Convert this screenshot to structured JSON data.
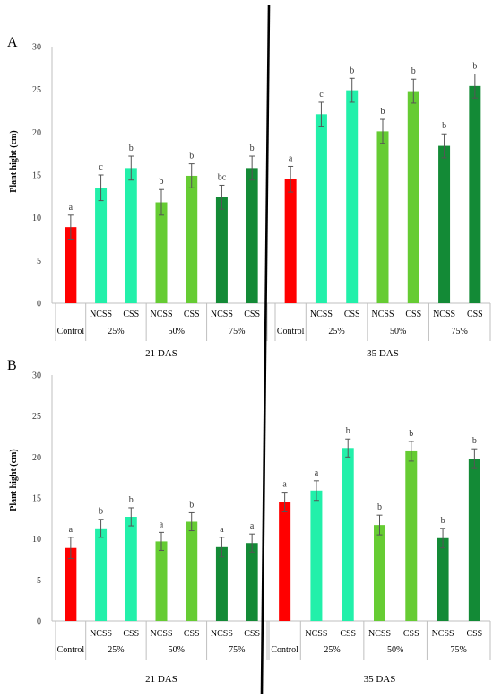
{
  "colors": {
    "control": "#FF0000",
    "light_green": "#22F0AA",
    "medium_green": "#66CC33",
    "dark_green": "#138A36"
  },
  "chart_data": [
    {
      "type": "bar",
      "panel": "A",
      "ylabel": "Plant hight (cm)",
      "ylim": [
        0,
        30
      ],
      "yticks": [
        0,
        5,
        10,
        15,
        20,
        25,
        30
      ],
      "grid": false,
      "groups": [
        {
          "label": "21 DAS",
          "categories": [
            {
              "level": "Control",
              "treatment": "",
              "value": 8.9,
              "error": 1.4,
              "letter": "a",
              "color": "#FF0000"
            },
            {
              "level": "25%",
              "treatment": "NCSS",
              "value": 13.5,
              "error": 1.5,
              "letter": "c",
              "color": "#22F0AA"
            },
            {
              "level": "25%",
              "treatment": "CSS",
              "value": 15.8,
              "error": 1.4,
              "letter": "b",
              "color": "#22F0AA"
            },
            {
              "level": "50%",
              "treatment": "NCSS",
              "value": 11.8,
              "error": 1.5,
              "letter": "b",
              "color": "#66CC33"
            },
            {
              "level": "50%",
              "treatment": "CSS",
              "value": 14.9,
              "error": 1.4,
              "letter": "b",
              "color": "#66CC33"
            },
            {
              "level": "75%",
              "treatment": "NCSS",
              "value": 12.4,
              "error": 1.4,
              "letter": "bc",
              "color": "#138A36"
            },
            {
              "level": "75%",
              "treatment": "CSS",
              "value": 15.8,
              "error": 1.4,
              "letter": "b",
              "color": "#138A36"
            }
          ]
        },
        {
          "label": "35 DAS",
          "categories": [
            {
              "level": "Control",
              "treatment": "",
              "value": 14.5,
              "error": 1.5,
              "letter": "a",
              "color": "#FF0000"
            },
            {
              "level": "25%",
              "treatment": "NCSS",
              "value": 22.1,
              "error": 1.4,
              "letter": "c",
              "color": "#22F0AA"
            },
            {
              "level": "25%",
              "treatment": "CSS",
              "value": 24.9,
              "error": 1.4,
              "letter": "b",
              "color": "#22F0AA"
            },
            {
              "level": "50%",
              "treatment": "NCSS",
              "value": 20.1,
              "error": 1.4,
              "letter": "b",
              "color": "#66CC33"
            },
            {
              "level": "50%",
              "treatment": "CSS",
              "value": 24.8,
              "error": 1.4,
              "letter": "b",
              "color": "#66CC33"
            },
            {
              "level": "75%",
              "treatment": "NCSS",
              "value": 18.4,
              "error": 1.4,
              "letter": "b",
              "color": "#138A36"
            },
            {
              "level": "75%",
              "treatment": "CSS",
              "value": 25.4,
              "error": 1.4,
              "letter": "b",
              "color": "#138A36"
            }
          ]
        }
      ]
    },
    {
      "type": "bar",
      "panel": "B",
      "ylabel": "Plant hight (cm)",
      "ylim": [
        0,
        30
      ],
      "yticks": [
        0,
        5,
        10,
        15,
        20,
        25,
        30
      ],
      "grid": false,
      "groups": [
        {
          "label": "21 DAS",
          "categories": [
            {
              "level": "Control",
              "treatment": "",
              "value": 8.9,
              "error": 1.3,
              "letter": "a",
              "color": "#FF0000"
            },
            {
              "level": "25%",
              "treatment": "NCSS",
              "value": 11.3,
              "error": 1.1,
              "letter": "b",
              "color": "#22F0AA"
            },
            {
              "level": "25%",
              "treatment": "CSS",
              "value": 12.7,
              "error": 1.1,
              "letter": "b",
              "color": "#22F0AA"
            },
            {
              "level": "50%",
              "treatment": "NCSS",
              "value": 9.7,
              "error": 1.1,
              "letter": "a",
              "color": "#66CC33"
            },
            {
              "level": "50%",
              "treatment": "CSS",
              "value": 12.1,
              "error": 1.1,
              "letter": "b",
              "color": "#66CC33"
            },
            {
              "level": "75%",
              "treatment": "NCSS",
              "value": 9.0,
              "error": 1.2,
              "letter": "a",
              "color": "#138A36"
            },
            {
              "level": "75%",
              "treatment": "CSS",
              "value": 9.5,
              "error": 1.1,
              "letter": "a",
              "color": "#138A36"
            }
          ]
        },
        {
          "label": "35 DAS",
          "categories": [
            {
              "level": "Control",
              "treatment": "",
              "value": 14.5,
              "error": 1.2,
              "letter": "a",
              "color": "#FF0000"
            },
            {
              "level": "25%",
              "treatment": "NCSS",
              "value": 15.9,
              "error": 1.2,
              "letter": "a",
              "color": "#22F0AA"
            },
            {
              "level": "25%",
              "treatment": "CSS",
              "value": 21.1,
              "error": 1.1,
              "letter": "b",
              "color": "#22F0AA"
            },
            {
              "level": "50%",
              "treatment": "NCSS",
              "value": 11.7,
              "error": 1.2,
              "letter": "b",
              "color": "#66CC33"
            },
            {
              "level": "50%",
              "treatment": "CSS",
              "value": 20.7,
              "error": 1.2,
              "letter": "b",
              "color": "#66CC33"
            },
            {
              "level": "75%",
              "treatment": "NCSS",
              "value": 10.1,
              "error": 1.2,
              "letter": "b",
              "color": "#138A36"
            },
            {
              "level": "75%",
              "treatment": "CSS",
              "value": 19.8,
              "error": 1.2,
              "letter": "b",
              "color": "#138A36"
            }
          ]
        }
      ]
    }
  ]
}
